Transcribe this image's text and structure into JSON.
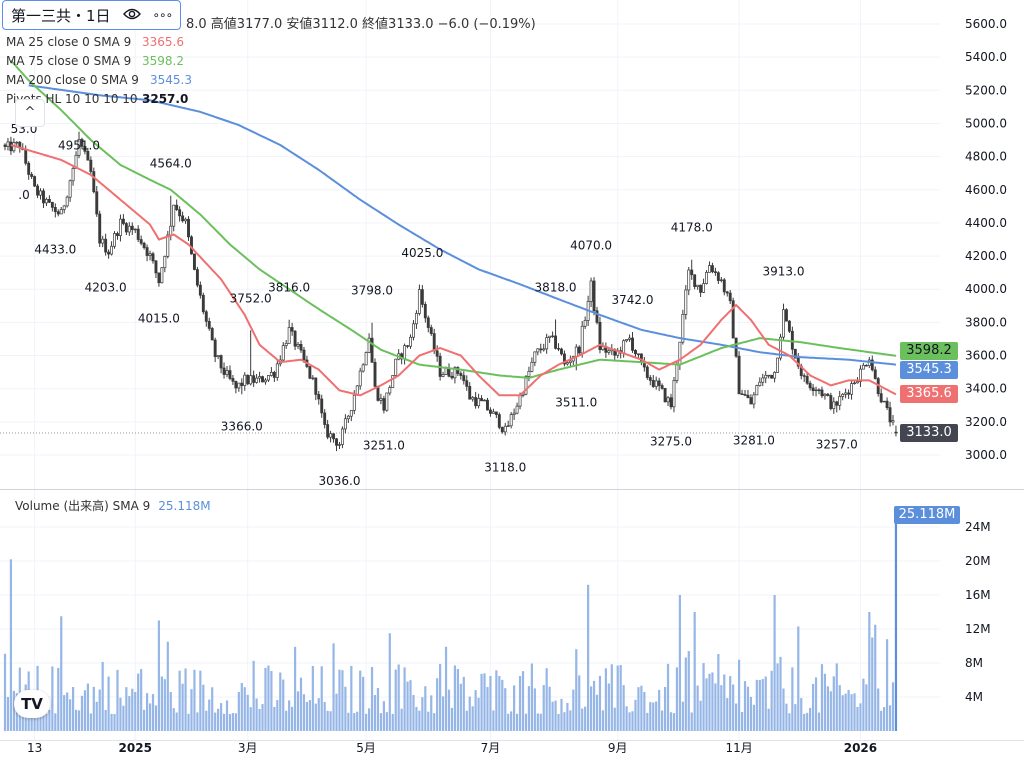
{
  "header": {
    "symbol": "第一三共・1日",
    "eye_icon": "eye-icon",
    "more_icon": "more-icon",
    "more_label": "∘∘∘",
    "ohlc_text": "8.0 高値3177.0 安値3112.0 終値3133.0 −6.0 (−0.19%)"
  },
  "indicators": [
    {
      "label": "MA 25 close 0 SMA 9",
      "value": "3365.6",
      "color": "#ef7070"
    },
    {
      "label": "MA 75 close 0 SMA 9",
      "value": "3598.2",
      "color": "#6bbf5c"
    },
    {
      "label": "MA 200 close 0 SMA 9",
      "value": "3545.3",
      "color": "#5b8fdb"
    },
    {
      "label": "Pivots HL 10 10 10 10",
      "value": "3257.0",
      "color": "#131722"
    }
  ],
  "collapse_label": "^",
  "volume_legend": {
    "label": "Volume (出来高) SMA 9",
    "value": "25.118M"
  },
  "price_tags": [
    {
      "value": "3598.2",
      "price": 3598.2,
      "color": "#6bbf5c",
      "text_color": "#131722"
    },
    {
      "value": "3545.3",
      "price": 3545.3,
      "color": "#5b8fdb",
      "text_color": "#ffffff"
    },
    {
      "value": "3365.6",
      "price": 3365.6,
      "color": "#ef7070",
      "text_color": "#ffffff"
    },
    {
      "value": "3133.0",
      "price": 3133.0,
      "color": "#434651",
      "text_color": "#ffffff"
    }
  ],
  "volume_tag": {
    "value": "25.118M",
    "color": "#5b8fdb"
  },
  "logo_text": "TV",
  "chart_data": {
    "type": "candlestick",
    "price_axis": {
      "ticks": [
        "5600.0",
        "5400.0",
        "5200.0",
        "5000.0",
        "4800.0",
        "4600.0",
        "4400.0",
        "4200.0",
        "4000.0",
        "3800.0",
        "3600.0",
        "3400.0",
        "3200.0",
        "3000.0"
      ],
      "ylim": [
        2930,
        5620
      ]
    },
    "volume_axis": {
      "ticks": [
        "24M",
        "20M",
        "16M",
        "12M",
        "8M",
        "4M"
      ],
      "ylim": [
        0,
        26
      ]
    },
    "x_axis": {
      "ticks": [
        {
          "label": "13",
          "bar": 10
        },
        {
          "label": "2025",
          "bar": 44
        },
        {
          "label": "3月",
          "bar": 82
        },
        {
          "label": "5月",
          "bar": 122
        },
        {
          "label": "7月",
          "bar": 164
        },
        {
          "label": "9月",
          "bar": 207
        },
        {
          "label": "11月",
          "bar": 248
        },
        {
          "label": "2026",
          "bar": 289
        }
      ]
    },
    "bars": 302,
    "close_anchors": [
      [
        0,
        4850
      ],
      [
        5,
        4870
      ],
      [
        10,
        4600
      ],
      [
        15,
        4500
      ],
      [
        19,
        4450
      ],
      [
        24,
        4800
      ],
      [
        25,
        4900
      ],
      [
        29,
        4700
      ],
      [
        32,
        4300
      ],
      [
        35,
        4230
      ],
      [
        39,
        4400
      ],
      [
        44,
        4350
      ],
      [
        49,
        4200
      ],
      [
        52,
        4050
      ],
      [
        56,
        4400
      ],
      [
        57,
        4520
      ],
      [
        61,
        4400
      ],
      [
        64,
        4100
      ],
      [
        68,
        3800
      ],
      [
        71,
        3600
      ],
      [
        74,
        3500
      ],
      [
        78,
        3400
      ],
      [
        81,
        3450
      ],
      [
        86,
        3450
      ],
      [
        91,
        3500
      ],
      [
        96,
        3750
      ],
      [
        100,
        3600
      ],
      [
        105,
        3400
      ],
      [
        108,
        3150
      ],
      [
        111,
        3100
      ],
      [
        113,
        3070
      ],
      [
        117,
        3300
      ],
      [
        120,
        3500
      ],
      [
        123,
        3720
      ],
      [
        125,
        3400
      ],
      [
        128,
        3290
      ],
      [
        132,
        3550
      ],
      [
        137,
        3700
      ],
      [
        140,
        3980
      ],
      [
        144,
        3700
      ],
      [
        147,
        3500
      ],
      [
        154,
        3500
      ],
      [
        157,
        3350
      ],
      [
        162,
        3300
      ],
      [
        167,
        3200
      ],
      [
        169,
        3140
      ],
      [
        174,
        3350
      ],
      [
        179,
        3600
      ],
      [
        184,
        3700
      ],
      [
        187,
        3650
      ],
      [
        189,
        3540
      ],
      [
        194,
        3650
      ],
      [
        198,
        4020
      ],
      [
        201,
        3650
      ],
      [
        206,
        3600
      ],
      [
        211,
        3700
      ],
      [
        216,
        3500
      ],
      [
        221,
        3400
      ],
      [
        225,
        3300
      ],
      [
        228,
        3700
      ],
      [
        231,
        4100
      ],
      [
        235,
        4000
      ],
      [
        238,
        4150
      ],
      [
        242,
        4050
      ],
      [
        245,
        3900
      ],
      [
        248,
        3400
      ],
      [
        252,
        3310
      ],
      [
        255,
        3450
      ],
      [
        260,
        3500
      ],
      [
        263,
        3860
      ],
      [
        267,
        3600
      ],
      [
        270,
        3450
      ],
      [
        275,
        3400
      ],
      [
        280,
        3290
      ],
      [
        285,
        3400
      ],
      [
        289,
        3500
      ],
      [
        292,
        3600
      ],
      [
        294,
        3450
      ],
      [
        297,
        3300
      ],
      [
        301,
        3133
      ]
    ],
    "last": {
      "open": 3138.0,
      "high": 3177.0,
      "low": 3112.0,
      "close": 3133.0,
      "change": -6.0,
      "change_pct": -0.19
    },
    "ma25": [
      [
        2,
        4870
      ],
      [
        19,
        4780
      ],
      [
        29,
        4690
      ],
      [
        39,
        4540
      ],
      [
        49,
        4390
      ],
      [
        52,
        4300
      ],
      [
        57,
        4330
      ],
      [
        62,
        4270
      ],
      [
        73,
        4060
      ],
      [
        81,
        3845
      ],
      [
        86,
        3665
      ],
      [
        93,
        3560
      ],
      [
        100,
        3575
      ],
      [
        106,
        3515
      ],
      [
        113,
        3390
      ],
      [
        120,
        3360
      ],
      [
        127,
        3420
      ],
      [
        133,
        3480
      ],
      [
        140,
        3600
      ],
      [
        147,
        3645
      ],
      [
        154,
        3600
      ],
      [
        160,
        3480
      ],
      [
        167,
        3360
      ],
      [
        174,
        3360
      ],
      [
        181,
        3480
      ],
      [
        187,
        3545
      ],
      [
        194,
        3600
      ],
      [
        201,
        3665
      ],
      [
        208,
        3620
      ],
      [
        215,
        3575
      ],
      [
        221,
        3515
      ],
      [
        228,
        3575
      ],
      [
        235,
        3665
      ],
      [
        242,
        3815
      ],
      [
        247,
        3905
      ],
      [
        252,
        3815
      ],
      [
        258,
        3665
      ],
      [
        265,
        3600
      ],
      [
        272,
        3480
      ],
      [
        279,
        3420
      ],
      [
        285,
        3450
      ],
      [
        292,
        3450
      ],
      [
        301,
        3365.6
      ]
    ],
    "ma75": [
      [
        2,
        5380
      ],
      [
        8,
        5260
      ],
      [
        19,
        5080
      ],
      [
        29,
        4900
      ],
      [
        39,
        4750
      ],
      [
        49,
        4660
      ],
      [
        56,
        4600
      ],
      [
        66,
        4450
      ],
      [
        76,
        4270
      ],
      [
        86,
        4120
      ],
      [
        96,
        4000
      ],
      [
        106,
        3880
      ],
      [
        117,
        3755
      ],
      [
        127,
        3635
      ],
      [
        140,
        3545
      ],
      [
        154,
        3515
      ],
      [
        167,
        3480
      ],
      [
        177,
        3465
      ],
      [
        187,
        3515
      ],
      [
        201,
        3575
      ],
      [
        215,
        3560
      ],
      [
        228,
        3545
      ],
      [
        242,
        3645
      ],
      [
        255,
        3705
      ],
      [
        269,
        3680
      ],
      [
        282,
        3645
      ],
      [
        301,
        3598.2
      ]
    ],
    "ma200": [
      [
        8,
        5230
      ],
      [
        32,
        5170
      ],
      [
        49,
        5140
      ],
      [
        66,
        5070
      ],
      [
        79,
        4990
      ],
      [
        93,
        4870
      ],
      [
        106,
        4720
      ],
      [
        120,
        4540
      ],
      [
        133,
        4390
      ],
      [
        147,
        4240
      ],
      [
        160,
        4120
      ],
      [
        174,
        4030
      ],
      [
        187,
        3940
      ],
      [
        201,
        3845
      ],
      [
        215,
        3755
      ],
      [
        228,
        3705
      ],
      [
        242,
        3665
      ],
      [
        255,
        3620
      ],
      [
        269,
        3590
      ],
      [
        285,
        3575
      ],
      [
        301,
        3545.3
      ]
    ],
    "pivots": [
      {
        "text": "53.0",
        "bar": -6,
        "price": 5051,
        "type": "high"
      },
      {
        "text": ".0",
        "bar": -2,
        "price": 4762,
        "type": "low"
      },
      {
        "text": "4951.0",
        "bar": 25,
        "price": 4951,
        "type": "high"
      },
      {
        "text": "4433.0",
        "bar": 17,
        "price": 4433,
        "type": "low"
      },
      {
        "text": "4203.0",
        "bar": 34,
        "price": 4203,
        "type": "low"
      },
      {
        "text": "4564.0",
        "bar": 56,
        "price": 4564,
        "type": "high"
      },
      {
        "text": "4015.0",
        "bar": 52,
        "price": 4015,
        "type": "low"
      },
      {
        "text": "3752.0",
        "bar": 83,
        "price": 3752,
        "type": "high"
      },
      {
        "text": "3366.0",
        "bar": 80,
        "price": 3366,
        "type": "low"
      },
      {
        "text": "3816.0",
        "bar": 96,
        "price": 3816,
        "type": "high"
      },
      {
        "text": "3036.0",
        "bar": 113,
        "price": 3036,
        "type": "low"
      },
      {
        "text": "3798.0",
        "bar": 124,
        "price": 3798,
        "type": "high"
      },
      {
        "text": "3251.0",
        "bar": 128,
        "price": 3251,
        "type": "low"
      },
      {
        "text": "4025.0",
        "bar": 141,
        "price": 4025,
        "type": "high"
      },
      {
        "text": "3118.0",
        "bar": 169,
        "price": 3118,
        "type": "low"
      },
      {
        "text": "3818.0",
        "bar": 186,
        "price": 3818,
        "type": "high"
      },
      {
        "text": "3511.0",
        "bar": 193,
        "price": 3511,
        "type": "low"
      },
      {
        "text": "4070.0",
        "bar": 198,
        "price": 4070,
        "type": "high"
      },
      {
        "text": "3742.0",
        "bar": 212,
        "price": 3742,
        "type": "high"
      },
      {
        "text": "3275.0",
        "bar": 225,
        "price": 3275,
        "type": "low"
      },
      {
        "text": "4178.0",
        "bar": 232,
        "price": 4178,
        "type": "high"
      },
      {
        "text": "3281.0",
        "bar": 253,
        "price": 3281,
        "type": "low"
      },
      {
        "text": "3913.0",
        "bar": 263,
        "price": 3913,
        "type": "high"
      },
      {
        "text": "3257.0",
        "bar": 281,
        "price": 3257,
        "type": "low"
      }
    ],
    "volume": {
      "unit": "M",
      "base_range": [
        2,
        8
      ],
      "spikes": [
        [
          2,
          20.2
        ],
        [
          19,
          13.5
        ],
        [
          52,
          13
        ],
        [
          55,
          10.5
        ],
        [
          130,
          11.5
        ],
        [
          197,
          17.2
        ],
        [
          228,
          16
        ],
        [
          233,
          14
        ],
        [
          260,
          16
        ],
        [
          268,
          12.3
        ],
        [
          292,
          14
        ],
        [
          293,
          11
        ],
        [
          294,
          12.5
        ],
        [
          298,
          10.8
        ],
        [
          301,
          25.118
        ]
      ]
    }
  }
}
